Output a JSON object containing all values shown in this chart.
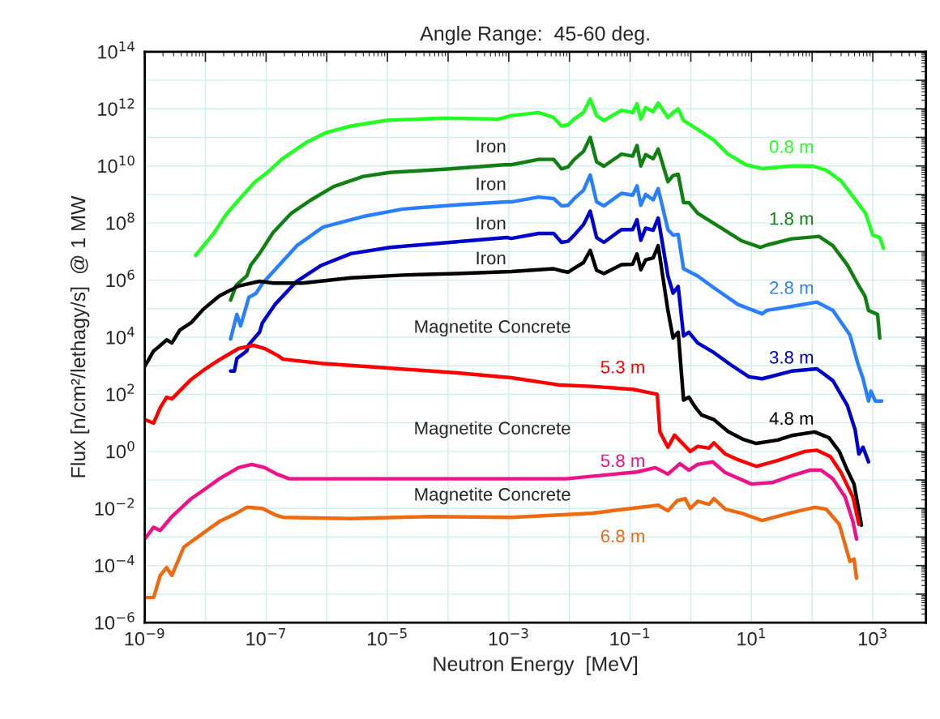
{
  "chart_data": {
    "type": "line",
    "title": "Angle Range:  45-60 deg.",
    "xlabel": "Neutron Energy  [MeV]",
    "ylabel": "Flux [n/cm²/lethagy/s]  @ 1 MW",
    "log": "xy",
    "grid": true,
    "legend": false,
    "marker": "none",
    "line_style": "solid",
    "xlim": [
      1e-09,
      7500
    ],
    "ylim": [
      1e-06,
      100000000000000.0
    ],
    "xticks": [
      {
        "value": 1e-09,
        "label": "10$^{−9}$"
      },
      {
        "value": 1e-08,
        "label": null
      },
      {
        "value": 1e-07,
        "label": "10$^{−7}$"
      },
      {
        "value": 1e-06,
        "label": null
      },
      {
        "value": 1e-05,
        "label": "10$^{−5}$"
      },
      {
        "value": 0.0001,
        "label": null
      },
      {
        "value": 0.001,
        "label": "10$^{−3}$"
      },
      {
        "value": 0.01,
        "label": null
      },
      {
        "value": 0.1,
        "label": "10$^{−1}$"
      },
      {
        "value": 1,
        "label": null
      },
      {
        "value": 10,
        "label": "10$^{1}$"
      },
      {
        "value": 100,
        "label": null
      },
      {
        "value": 1000,
        "label": "10$^{3}$"
      }
    ],
    "yticks": [
      {
        "value": 1e-06,
        "label": "10$^{−6}$"
      },
      {
        "value": 1e-05,
        "label": null
      },
      {
        "value": 0.0001,
        "label": "10$^{−4}$"
      },
      {
        "value": 0.001,
        "label": null
      },
      {
        "value": 0.01,
        "label": "10$^{−2}$"
      },
      {
        "value": 0.1,
        "label": null
      },
      {
        "value": 1,
        "label": "10$^{0}$"
      },
      {
        "value": 10,
        "label": null
      },
      {
        "value": 100,
        "label": "10$^{2}$"
      },
      {
        "value": 1000,
        "label": null
      },
      {
        "value": 10000.0,
        "label": "10$^{4}$"
      },
      {
        "value": 100000.0,
        "label": null
      },
      {
        "value": 1000000.0,
        "label": "10$^{6}$"
      },
      {
        "value": 10000000.0,
        "label": null
      },
      {
        "value": 100000000.0,
        "label": "10$^{8}$"
      },
      {
        "value": 1000000000.0,
        "label": null
      },
      {
        "value": 10000000000.0,
        "label": "10$^{10}$"
      },
      {
        "value": 100000000000.0,
        "label": null
      },
      {
        "value": 1000000000000.0,
        "label": "10$^{12}$"
      },
      {
        "value": 10000000000000.0,
        "label": null
      },
      {
        "value": 100000000000000.0,
        "label": "10$^{14}$"
      }
    ],
    "annotations": [
      "Iron",
      "Iron",
      "Iron",
      "Iron",
      "Magnetite Concrete",
      "Magnetite Concrete",
      "Magnetite Concrete"
    ],
    "series": [
      {
        "name": "0.8 m",
        "color": "#22ff22",
        "x": [
          6.9e-09,
          1.4e-08,
          2.2e-08,
          3.5e-08,
          6.5e-08,
          1.05e-07,
          1.8e-07,
          4.8e-07,
          1e-06,
          2.5e-06,
          1e-05,
          8.1e-05,
          0.00068,
          0.0011,
          0.0031,
          0.0055,
          0.0074,
          0.0095,
          0.012,
          0.017,
          0.022,
          0.028,
          0.037,
          0.072,
          0.11,
          0.13,
          0.15,
          0.18,
          0.24,
          0.29,
          0.42,
          0.51,
          0.62,
          0.76,
          1.3,
          2.4,
          4.1,
          8.1,
          15,
          46,
          100,
          170,
          300,
          560,
          760,
          1000,
          1300,
          1500
        ],
        "values": [
          7400000.0,
          46000000.0,
          200000000.0,
          630000000.0,
          2700000000.0,
          5900000000.0,
          17000000000.0,
          70000000000.0,
          150000000000.0,
          250000000000.0,
          400000000000.0,
          470000000000.0,
          440000000000.0,
          580000000000.0,
          740000000000.0,
          500000000000.0,
          250000000000.0,
          280000000000.0,
          440000000000.0,
          740000000000.0,
          2200000000000.0,
          580000000000.0,
          390000000000.0,
          890000000000.0,
          740000000000.0,
          1500000000000.0,
          440000000000.0,
          1100000000000.0,
          800000000000.0,
          1600000000000.0,
          500000000000.0,
          740000000000.0,
          1000000000000.0,
          390000000000.0,
          190000000000.0,
          80000000000.0,
          26000000000.0,
          11000000000.0,
          8100000000.0,
          10000000000.0,
          10000000000.0,
          7100000000.0,
          3000000000.0,
          520000000.0,
          220000000.0,
          38000000.0,
          31000000.0,
          13000000.0
        ]
      },
      {
        "name": "1.8 m",
        "color": "#117f11",
        "x": [
          2.6e-08,
          3.2e-08,
          4.8e-08,
          5.6e-08,
          7.8e-08,
          1.3e-07,
          2.6e-07,
          5.4e-07,
          1.3e-06,
          4e-06,
          1.1e-05,
          0.00011,
          0.00085,
          0.0011,
          0.0031,
          0.0055,
          0.0074,
          0.0095,
          0.012,
          0.017,
          0.022,
          0.028,
          0.037,
          0.072,
          0.11,
          0.13,
          0.15,
          0.18,
          0.24,
          0.29,
          0.42,
          0.51,
          0.62,
          0.76,
          0.93,
          1.3,
          3,
          6.8,
          14,
          18,
          46,
          130,
          220,
          380,
          560,
          740,
          850,
          1200,
          1300
        ],
        "values": [
          200000.0,
          660000.0,
          1400000.0,
          3400000.0,
          8500000.0,
          46000000.0,
          220000000.0,
          630000000.0,
          1900000000.0,
          4300000000.0,
          5900000000.0,
          7900000000.0,
          11000000000.0,
          11000000000.0,
          17000000000.0,
          17000000000.0,
          7900000000.0,
          9300000000.0,
          17000000000.0,
          32000000000.0,
          100000000000.0,
          14000000000.0,
          9800000000.0,
          26000000000.0,
          22000000000.0,
          52000000000.0,
          10000000000.0,
          25000000000.0,
          18000000000.0,
          39000000000.0,
          2800000000.0,
          4600000000.0,
          5100000000.0,
          520000000.0,
          520000000.0,
          220000000.0,
          72000000.0,
          24000000.0,
          14000000.0,
          17000000.0,
          28000000.0,
          34000000.0,
          16000000.0,
          3400000.0,
          760000.0,
          280000.0,
          87000.0,
          63000.0,
          9300.0
        ]
      },
      {
        "name": "2.8 m",
        "color": "#2a7fff",
        "x": [
          2.6e-08,
          3.3e-08,
          3.8e-08,
          5.2e-08,
          6.8e-08,
          8.7e-08,
          1.4e-07,
          3.2e-07,
          8.7e-07,
          4e-06,
          1.8e-05,
          0.00014,
          0.00093,
          0.0011,
          0.0031,
          0.0055,
          0.0074,
          0.0095,
          0.012,
          0.017,
          0.022,
          0.028,
          0.037,
          0.072,
          0.11,
          0.13,
          0.15,
          0.18,
          0.24,
          0.29,
          0.42,
          0.51,
          0.62,
          0.76,
          1.3,
          2.4,
          6,
          15,
          18,
          46,
          120,
          220,
          420,
          560,
          690,
          850,
          930,
          1100,
          1400
        ],
        "values": [
          8700.0,
          63000.0,
          25000.0,
          250000.0,
          340000.0,
          760000.0,
          2300000.0,
          16000000.0,
          72000000.0,
          170000000.0,
          310000000.0,
          430000000.0,
          550000000.0,
          550000000.0,
          810000000.0,
          720000000.0,
          400000000.0,
          420000000.0,
          720000000.0,
          1400000000.0,
          4800000000.0,
          550000000.0,
          400000000.0,
          1100000000.0,
          950000000.0,
          2000000000.0,
          420000000.0,
          1000000000.0,
          650000000.0,
          1600000000.0,
          59000000.0,
          38000000.0,
          40000000.0,
          2500000.0,
          1400000.0,
          540000.0,
          140000.0,
          66000.0,
          87000.0,
          120000.0,
          170000.0,
          87000.0,
          12000.0,
          1300.0,
          350,
          58,
          130,
          58,
          58
        ]
      },
      {
        "name": "3.8 m",
        "color": "#0000cc",
        "x": [
          2.6e-08,
          3e-08,
          3.3e-08,
          4.8e-08,
          5.2e-08,
          7.8e-08,
          8.7e-08,
          1.4e-07,
          3.2e-07,
          7.9e-07,
          2.5e-06,
          1.1e-05,
          0.00014,
          0.00093,
          0.0011,
          0.0031,
          0.0055,
          0.0074,
          0.0095,
          0.012,
          0.017,
          0.022,
          0.028,
          0.037,
          0.072,
          0.11,
          0.13,
          0.15,
          0.18,
          0.24,
          0.29,
          0.42,
          0.51,
          0.62,
          0.76,
          0.93,
          1.3,
          2.4,
          4.5,
          9.1,
          15,
          46,
          120,
          220,
          380,
          510,
          590,
          690,
          850
        ],
        "values": [
          650,
          650,
          1800.0,
          3300.0,
          5500.0,
          15000.0,
          32000.0,
          140000.0,
          910000.0,
          3200000.0,
          8500000.0,
          14000000.0,
          22000000.0,
          31000000.0,
          29000000.0,
          43000000.0,
          43000000.0,
          21000000.0,
          23000000.0,
          38000000.0,
          87000000.0,
          260000000.0,
          31000000.0,
          21000000.0,
          59000000.0,
          59000000.0,
          130000000.0,
          25000000.0,
          66000000.0,
          56000000.0,
          150000000.0,
          1400000.0,
          350000.0,
          600000.0,
          11000.0,
          15000.0,
          6300.0,
          2900.0,
          1100.0,
          410,
          350,
          650,
          780,
          300,
          41,
          5.8,
          0.81,
          1.4,
          0.43
        ]
      },
      {
        "name": "4.8 m",
        "color": "#000000",
        "x": [
          1e-09,
          1.4e-09,
          1.7e-09,
          2.3e-09,
          2.8e-09,
          3.8e-09,
          5.8e-09,
          9.1e-09,
          1.7e-08,
          3.5e-08,
          7.8e-08,
          1.3e-07,
          4e-07,
          2.5e-06,
          1.8e-05,
          0.00014,
          0.0011,
          0.0031,
          0.0055,
          0.0074,
          0.0095,
          0.012,
          0.017,
          0.022,
          0.028,
          0.037,
          0.072,
          0.11,
          0.13,
          0.15,
          0.18,
          0.24,
          0.29,
          0.42,
          0.51,
          0.62,
          0.76,
          0.93,
          1.2,
          1.5,
          2.4,
          4.1,
          7.4,
          12,
          27,
          46,
          110,
          190,
          280,
          380,
          490,
          650
        ],
        "values": [
          950,
          3300.0,
          4600.0,
          8100.0,
          6300.0,
          18000.0,
          32000.0,
          93000.0,
          280000.0,
          620000.0,
          910000.0,
          790000.0,
          790000.0,
          1200000.0,
          1500000.0,
          1700000.0,
          2000000.0,
          2300000.0,
          2500000.0,
          2100000.0,
          1900000.0,
          2600000.0,
          4100000.0,
          11000000.0,
          2200000.0,
          1700000.0,
          3500000.0,
          3600000.0,
          8300000.0,
          2300000.0,
          5100000.0,
          6000000.0,
          16000000.0,
          85000.0,
          9500.0,
          15000.0,
          63,
          79,
          34,
          19,
          13,
          5,
          2.6,
          1.9,
          2.5,
          3.6,
          4.8,
          3,
          1,
          0.22,
          0.072,
          0.0026
        ]
      },
      {
        "name": "5.3 m",
        "color": "#ff0000",
        "x": [
          1e-09,
          1.4e-09,
          1.8e-09,
          2.3e-09,
          2.8e-09,
          5.8e-09,
          1e-08,
          1.6e-08,
          3.5e-08,
          6.2e-08,
          9.5e-08,
          1.6e-07,
          1.9e-07,
          8.7e-07,
          6.6e-06,
          0.00014,
          0.0011,
          0.0071,
          0.023,
          0.11,
          0.28,
          0.31,
          0.42,
          0.54,
          0.98,
          1.3,
          2,
          2.4,
          3.7,
          6,
          12,
          27,
          76,
          120,
          200,
          300,
          470,
          590
        ],
        "values": [
          13,
          9.8,
          34,
          79,
          69,
          330,
          780,
          1500.0,
          4000.0,
          5200.0,
          4000.0,
          2200.0,
          1700.0,
          1200.0,
          890,
          560,
          380,
          210,
          190,
          150,
          100,
          4.8,
          1.4,
          3.7,
          1,
          1.5,
          1.3,
          2,
          0.81,
          0.51,
          0.3,
          0.48,
          1,
          1.1,
          0.66,
          0.18,
          0.025,
          0.0028
        ]
      },
      {
        "name": "5.8 m",
        "color": "#ee1188",
        "x": [
          1e-09,
          1.4e-09,
          1.8e-09,
          2.8e-09,
          5.8e-09,
          1e-08,
          1.7e-08,
          3.5e-08,
          5.8e-08,
          9.5e-08,
          1.5e-07,
          2.4e-07,
          6.6e-06,
          0.00014,
          0.0087,
          0.13,
          0.26,
          0.42,
          0.66,
          0.93,
          1.3,
          2.3,
          3.7,
          10,
          22,
          46,
          91,
          140,
          220,
          350,
          470,
          540
        ],
        "values": [
          0.00085,
          0.0022,
          0.0017,
          0.0052,
          0.022,
          0.049,
          0.11,
          0.27,
          0.35,
          0.27,
          0.16,
          0.11,
          0.11,
          0.11,
          0.11,
          0.19,
          0.27,
          0.16,
          0.37,
          0.22,
          0.35,
          0.43,
          0.18,
          0.072,
          0.081,
          0.14,
          0.22,
          0.22,
          0.11,
          0.025,
          0.0035,
          0.00085
        ]
      },
      {
        "name": "6.8 m",
        "color": "#ee6a11",
        "x": [
          1e-09,
          1.4e-09,
          1.8e-09,
          2.3e-09,
          2.8e-09,
          4.4e-09,
          9.3e-09,
          1.7e-08,
          2.9e-08,
          4.8e-08,
          8.7e-08,
          1.4e-07,
          1.9e-07,
          2.5e-06,
          5e-05,
          0.0011,
          0.023,
          0.29,
          0.42,
          0.6,
          0.81,
          0.98,
          1.3,
          2,
          2.4,
          3.7,
          6.8,
          15,
          46,
          110,
          170,
          280,
          420,
          490,
          540
        ],
        "values": [
          7.6e-06,
          7.6e-06,
          4.5e-05,
          8.5e-05,
          4.5e-05,
          0.00044,
          0.0014,
          0.0035,
          0.006,
          0.011,
          0.01,
          0.006,
          0.0049,
          0.0044,
          0.0052,
          0.0049,
          0.0068,
          0.013,
          0.0083,
          0.019,
          0.022,
          0.01,
          0.018,
          0.014,
          0.022,
          0.0095,
          0.0068,
          0.0038,
          0.0072,
          0.011,
          0.0095,
          0.0028,
          0.00014,
          0.00017,
          3.6e-05
        ]
      }
    ]
  }
}
